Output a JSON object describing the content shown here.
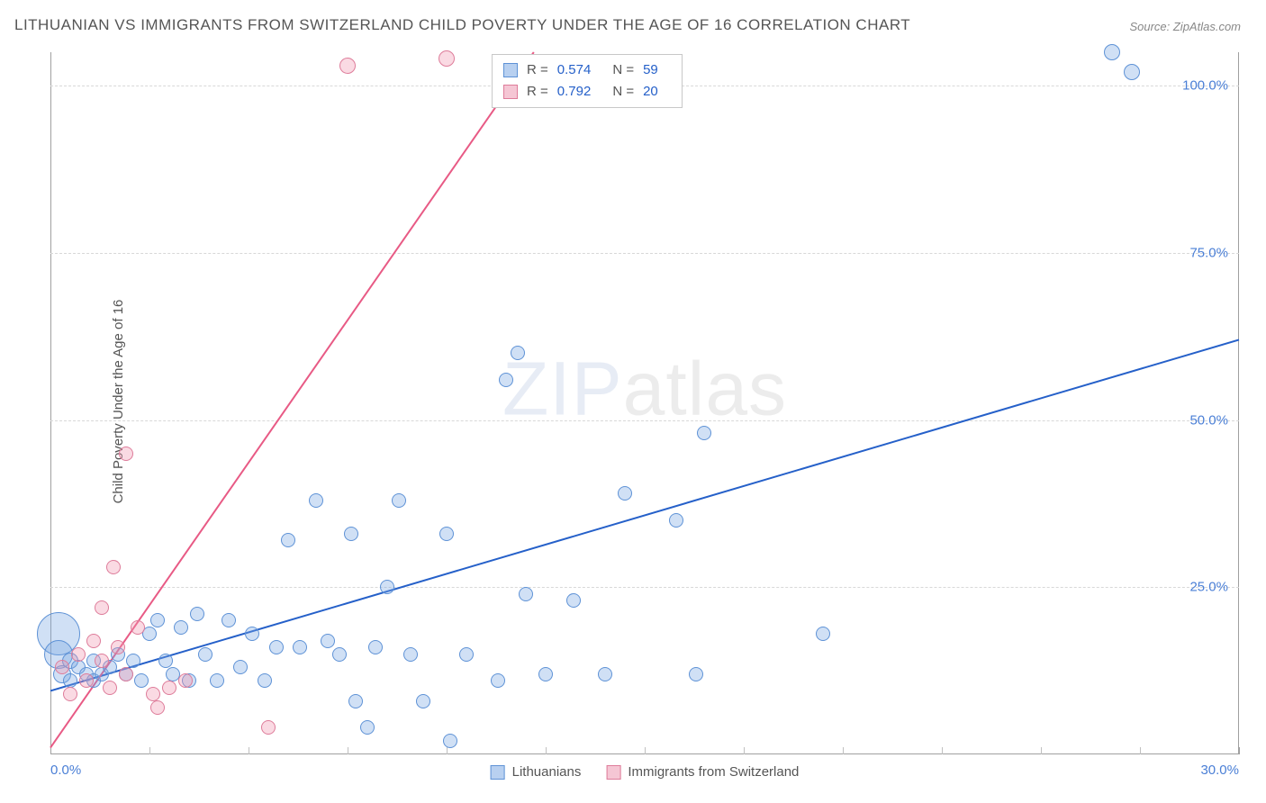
{
  "title": "LITHUANIAN VS IMMIGRANTS FROM SWITZERLAND CHILD POVERTY UNDER THE AGE OF 16 CORRELATION CHART",
  "source": "Source: ZipAtlas.com",
  "ylabel": "Child Poverty Under the Age of 16",
  "watermark_a": "ZIP",
  "watermark_b": "atlas",
  "chart": {
    "type": "scatter",
    "xlim": [
      0,
      30
    ],
    "ylim": [
      0,
      105
    ],
    "x_tick_labels": [
      "0.0%",
      "30.0%"
    ],
    "x_tick_minor_step": 2.5,
    "y_tick_labels": [
      "25.0%",
      "50.0%",
      "75.0%",
      "100.0%"
    ],
    "y_tick_values": [
      25,
      50,
      75,
      100
    ],
    "grid_dash_color": "#d8d8d8",
    "axis_color": "#a0a0a0",
    "series": [
      {
        "key": "lithuanians",
        "label": "Lithuanians",
        "fill": "rgba(120,165,225,0.35)",
        "stroke": "#5e92d6",
        "swatch_fill": "#b8d0f0",
        "swatch_border": "#5e92d6",
        "line_color": "#2560c9",
        "line": {
          "x1": 0,
          "y1": 9.5,
          "x2": 30,
          "y2": 62
        },
        "stats": {
          "R": "0.574",
          "N": "59"
        },
        "points": [
          {
            "x": 0.2,
            "y": 18,
            "r": 24
          },
          {
            "x": 0.2,
            "y": 15,
            "r": 16
          },
          {
            "x": 0.3,
            "y": 12,
            "r": 10
          },
          {
            "x": 0.5,
            "y": 14,
            "r": 9
          },
          {
            "x": 0.5,
            "y": 11,
            "r": 8
          },
          {
            "x": 0.7,
            "y": 13,
            "r": 8
          },
          {
            "x": 0.9,
            "y": 12,
            "r": 8
          },
          {
            "x": 1.1,
            "y": 14,
            "r": 8
          },
          {
            "x": 1.1,
            "y": 11,
            "r": 8
          },
          {
            "x": 1.3,
            "y": 12,
            "r": 8
          },
          {
            "x": 1.5,
            "y": 13,
            "r": 8
          },
          {
            "x": 1.7,
            "y": 15,
            "r": 8
          },
          {
            "x": 1.9,
            "y": 12,
            "r": 8
          },
          {
            "x": 2.1,
            "y": 14,
            "r": 8
          },
          {
            "x": 2.3,
            "y": 11,
            "r": 8
          },
          {
            "x": 2.5,
            "y": 18,
            "r": 8
          },
          {
            "x": 2.7,
            "y": 20,
            "r": 8
          },
          {
            "x": 2.9,
            "y": 14,
            "r": 8
          },
          {
            "x": 3.1,
            "y": 12,
            "r": 8
          },
          {
            "x": 3.3,
            "y": 19,
            "r": 8
          },
          {
            "x": 3.5,
            "y": 11,
            "r": 8
          },
          {
            "x": 3.7,
            "y": 21,
            "r": 8
          },
          {
            "x": 3.9,
            "y": 15,
            "r": 8
          },
          {
            "x": 4.2,
            "y": 11,
            "r": 8
          },
          {
            "x": 4.5,
            "y": 20,
            "r": 8
          },
          {
            "x": 4.8,
            "y": 13,
            "r": 8
          },
          {
            "x": 5.1,
            "y": 18,
            "r": 8
          },
          {
            "x": 5.4,
            "y": 11,
            "r": 8
          },
          {
            "x": 5.7,
            "y": 16,
            "r": 8
          },
          {
            "x": 6.0,
            "y": 32,
            "r": 8
          },
          {
            "x": 6.3,
            "y": 16,
            "r": 8
          },
          {
            "x": 6.7,
            "y": 38,
            "r": 8
          },
          {
            "x": 7.0,
            "y": 17,
            "r": 8
          },
          {
            "x": 7.3,
            "y": 15,
            "r": 8
          },
          {
            "x": 7.7,
            "y": 8,
            "r": 8
          },
          {
            "x": 7.6,
            "y": 33,
            "r": 8
          },
          {
            "x": 8.0,
            "y": 4,
            "r": 8
          },
          {
            "x": 8.2,
            "y": 16,
            "r": 8
          },
          {
            "x": 8.5,
            "y": 25,
            "r": 8
          },
          {
            "x": 8.8,
            "y": 38,
            "r": 8
          },
          {
            "x": 9.1,
            "y": 15,
            "r": 8
          },
          {
            "x": 9.4,
            "y": 8,
            "r": 8
          },
          {
            "x": 10.0,
            "y": 33,
            "r": 8
          },
          {
            "x": 10.1,
            "y": 2,
            "r": 8
          },
          {
            "x": 10.5,
            "y": 15,
            "r": 8
          },
          {
            "x": 11.3,
            "y": 11,
            "r": 8
          },
          {
            "x": 11.5,
            "y": 56,
            "r": 8
          },
          {
            "x": 12.0,
            "y": 24,
            "r": 8
          },
          {
            "x": 11.8,
            "y": 60,
            "r": 8
          },
          {
            "x": 12.5,
            "y": 12,
            "r": 8
          },
          {
            "x": 13.2,
            "y": 23,
            "r": 8
          },
          {
            "x": 14.0,
            "y": 12,
            "r": 8
          },
          {
            "x": 14.5,
            "y": 39,
            "r": 8
          },
          {
            "x": 15.8,
            "y": 35,
            "r": 8
          },
          {
            "x": 16.3,
            "y": 12,
            "r": 8
          },
          {
            "x": 16.5,
            "y": 48,
            "r": 8
          },
          {
            "x": 19.5,
            "y": 18,
            "r": 8
          },
          {
            "x": 27.3,
            "y": 102,
            "r": 9
          },
          {
            "x": 26.8,
            "y": 105,
            "r": 9
          }
        ]
      },
      {
        "key": "swiss",
        "label": "Immigrants from Switzerland",
        "fill": "rgba(240,150,175,0.35)",
        "stroke": "#de7c9a",
        "swatch_fill": "#f5c6d4",
        "swatch_border": "#de7c9a",
        "line_color": "#e85a85",
        "line": {
          "x1": 0,
          "y1": 1,
          "x2": 12.2,
          "y2": 105
        },
        "stats": {
          "R": "0.792",
          "N": "20"
        },
        "points": [
          {
            "x": 0.3,
            "y": 13,
            "r": 8
          },
          {
            "x": 0.5,
            "y": 9,
            "r": 8
          },
          {
            "x": 0.7,
            "y": 15,
            "r": 8
          },
          {
            "x": 0.9,
            "y": 11,
            "r": 8
          },
          {
            "x": 1.1,
            "y": 17,
            "r": 8
          },
          {
            "x": 1.3,
            "y": 14,
            "r": 8
          },
          {
            "x": 1.3,
            "y": 22,
            "r": 8
          },
          {
            "x": 1.5,
            "y": 10,
            "r": 8
          },
          {
            "x": 1.6,
            "y": 28,
            "r": 8
          },
          {
            "x": 1.7,
            "y": 16,
            "r": 8
          },
          {
            "x": 1.9,
            "y": 12,
            "r": 8
          },
          {
            "x": 1.9,
            "y": 45,
            "r": 8
          },
          {
            "x": 2.2,
            "y": 19,
            "r": 8
          },
          {
            "x": 2.6,
            "y": 9,
            "r": 8
          },
          {
            "x": 2.7,
            "y": 7,
            "r": 8
          },
          {
            "x": 3.0,
            "y": 10,
            "r": 8
          },
          {
            "x": 3.4,
            "y": 11,
            "r": 8
          },
          {
            "x": 5.5,
            "y": 4,
            "r": 8
          },
          {
            "x": 7.5,
            "y": 103,
            "r": 9
          },
          {
            "x": 10.0,
            "y": 104,
            "r": 9
          }
        ]
      }
    ]
  },
  "stats_labels": {
    "R": "R =",
    "N": "N ="
  },
  "colors": {
    "text": "#555555",
    "value": "#2560c9",
    "tick": "#4a7fd6"
  }
}
